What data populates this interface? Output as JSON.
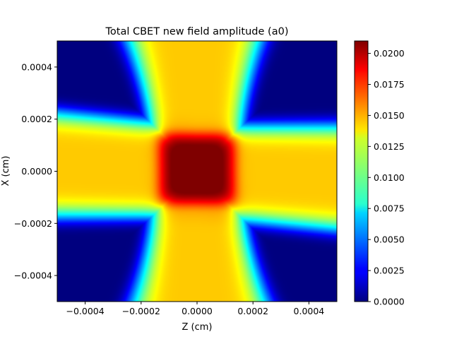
{
  "chart_data": {
    "type": "heatmap",
    "title": "Total CBET new field amplitude (a0)",
    "xlabel": "Z (cm)",
    "ylabel": "X (cm)",
    "xlim": [
      -0.0005,
      0.0005
    ],
    "ylim": [
      -0.0005,
      0.0005
    ],
    "x_ticks": [
      -0.0004,
      -0.0002,
      0.0,
      0.0002,
      0.0004
    ],
    "x_tick_labels": [
      "−0.0004",
      "−0.0002",
      "0.0000",
      "0.0002",
      "0.0004"
    ],
    "y_ticks": [
      -0.0004,
      -0.0002,
      0.0,
      0.0002,
      0.0004
    ],
    "y_tick_labels": [
      "−0.0004",
      "−0.0002",
      "0.0000",
      "0.0002",
      "0.0004"
    ],
    "colormap": "jet",
    "colorbar": {
      "min": 0.0,
      "max": 0.021,
      "ticks": [
        0.0,
        0.0025,
        0.005,
        0.0075,
        0.01,
        0.0125,
        0.015,
        0.0175,
        0.02
      ],
      "tick_labels": [
        "0.0000",
        "0.0025",
        "0.0050",
        "0.0075",
        "0.0100",
        "0.0125",
        "0.0150",
        "0.0175",
        "0.0200"
      ]
    },
    "field": {
      "description_values": "cross-shaped beam overlap",
      "horizontal_beam": {
        "center_x": 0.0,
        "half_width": 0.00018,
        "amplitude": 0.0145,
        "tilt": -0.05
      },
      "vertical_beam": {
        "center_z": 0.0,
        "half_width": 0.00016,
        "amplitude": 0.0145,
        "spread_rate": 0.12
      },
      "overlap_peak": 0.0208
    }
  }
}
